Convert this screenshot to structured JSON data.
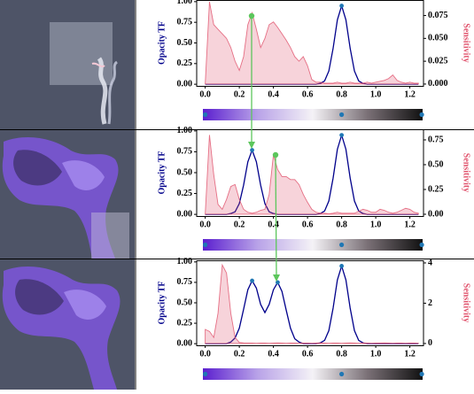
{
  "chart_data": [
    {
      "type": "line",
      "x": [
        0,
        0.025,
        0.05,
        0.075,
        0.1,
        0.125,
        0.15,
        0.175,
        0.2,
        0.225,
        0.25,
        0.275,
        0.3,
        0.325,
        0.35,
        0.375,
        0.4,
        0.425,
        0.45,
        0.475,
        0.5,
        0.525,
        0.55,
        0.575,
        0.6,
        0.625,
        0.65,
        0.675,
        0.7,
        0.725,
        0.75,
        0.775,
        0.8,
        0.825,
        0.85,
        0.875,
        0.9,
        0.925,
        0.95,
        0.975,
        1,
        1.025,
        1.05,
        1.075,
        1.1,
        1.125,
        1.15,
        1.175,
        1.2,
        1.225,
        1.25
      ],
      "series": [
        {
          "color": "#00008b",
          "values": [
            0,
            0,
            0,
            0,
            0,
            0,
            0,
            0,
            0,
            0,
            0,
            0,
            0,
            0,
            0,
            0,
            0,
            0,
            0,
            0,
            0,
            0,
            0,
            0,
            0,
            0,
            0,
            0.01,
            0.04,
            0.16,
            0.435,
            0.78,
            0.95,
            0.78,
            0.435,
            0.16,
            0.04,
            0.01,
            0,
            0,
            0,
            0,
            0,
            0,
            0,
            0,
            0,
            0,
            0,
            0,
            0
          ]
        },
        {
          "color": "#e0506a",
          "axis": "y2",
          "area": true,
          "values": [
            0,
            0.09,
            0.065,
            0.06,
            0.055,
            0.05,
            0.04,
            0.025,
            0.015,
            0.03,
            0.065,
            0.078,
            0.06,
            0.04,
            0.05,
            0.065,
            0.068,
            0.062,
            0.055,
            0.048,
            0.04,
            0.03,
            0.025,
            0.03,
            0.02,
            0.005,
            0.002,
            0.002,
            0.001,
            0.001,
            0.001,
            0.002,
            0.001,
            0.001,
            0.002,
            0.001,
            0.001,
            0.001,
            0.002,
            0.001,
            0.002,
            0.003,
            0.004,
            0.006,
            0.01,
            0.004,
            0.002,
            0.001,
            0.002,
            0.001,
            0.001
          ]
        }
      ],
      "control_points": {
        "color": "#1f77b4",
        "x": [
          0.8
        ],
        "y": [
          0.95
        ]
      },
      "colorbar": {
        "colors": [
          "#5b1fcf",
          "#b9a3e8",
          "#f4f2f6",
          "#7a7076",
          "#111111"
        ],
        "points": [
          0,
          0.8,
          1.27
        ]
      },
      "ylabel": "Opacity TF",
      "y2label": "Sensitivity",
      "xlim": [
        -0.05,
        1.28
      ],
      "ylim": [
        -0.02,
        1.02
      ],
      "y2lim": [
        -0.002,
        0.092
      ],
      "xticks": [
        {
          "value": 0,
          "label": "0.0"
        },
        0.2,
        0.4,
        0.6,
        0.8,
        {
          "value": 1,
          "label": "1.0"
        },
        1.2
      ],
      "yticks": [
        {
          "value": 0,
          "label": "0.00"
        },
        0.25,
        {
          "value": 0.5,
          "label": "0.50"
        },
        0.75,
        {
          "value": 1,
          "label": "1.00"
        }
      ],
      "y2ticks": [
        {
          "value": 0,
          "label": "0.000"
        },
        0.025,
        {
          "value": 0.05,
          "label": "0.050"
        },
        0.075
      ]
    },
    {
      "type": "line",
      "x": [
        0,
        0.025,
        0.05,
        0.075,
        0.1,
        0.125,
        0.15,
        0.175,
        0.2,
        0.225,
        0.25,
        0.275,
        0.3,
        0.325,
        0.35,
        0.375,
        0.4,
        0.425,
        0.45,
        0.475,
        0.5,
        0.525,
        0.55,
        0.575,
        0.6,
        0.625,
        0.65,
        0.675,
        0.7,
        0.725,
        0.75,
        0.775,
        0.8,
        0.825,
        0.85,
        0.875,
        0.9,
        0.925,
        0.95,
        0.975,
        1,
        1.025,
        1.05,
        1.075,
        1.1,
        1.125,
        1.15,
        1.175,
        1.2,
        1.225,
        1.25
      ],
      "series": [
        {
          "color": "#00008b",
          "values": [
            0,
            0,
            0,
            0,
            0,
            0,
            0.01,
            0.03,
            0.13,
            0.35,
            0.63,
            0.77,
            0.63,
            0.35,
            0.13,
            0.03,
            0.01,
            0,
            0,
            0,
            0,
            0,
            0,
            0,
            0,
            0,
            0,
            0.01,
            0.04,
            0.16,
            0.435,
            0.78,
            0.95,
            0.78,
            0.435,
            0.16,
            0.04,
            0.01,
            0,
            0,
            0,
            0,
            0,
            0,
            0,
            0,
            0,
            0,
            0,
            0,
            0
          ]
        },
        {
          "color": "#e0506a",
          "axis": "y2",
          "area": true,
          "values": [
            0,
            0.8,
            0.4,
            0.1,
            0.05,
            0.15,
            0.28,
            0.3,
            0.15,
            0.05,
            0.02,
            0.01,
            0.02,
            0.04,
            0.05,
            0.2,
            0.6,
            0.45,
            0.38,
            0.38,
            0.35,
            0.35,
            0.3,
            0.2,
            0.12,
            0.05,
            0.02,
            0.01,
            0.01,
            0.005,
            0.01,
            0.02,
            0.01,
            0.01,
            0.01,
            0.01,
            0.03,
            0.05,
            0.04,
            0.02,
            0.02,
            0.05,
            0.04,
            0.02,
            0.01,
            0.02,
            0.04,
            0.06,
            0.05,
            0.02,
            0.01
          ]
        }
      ],
      "control_points": {
        "color": "#1f77b4",
        "x": [
          0.275,
          0.8
        ],
        "y": [
          0.77,
          0.95
        ]
      },
      "colorbar": {
        "colors": [
          "#5b1fcf",
          "#b9a3e8",
          "#f4f2f6",
          "#7a7076",
          "#111111"
        ],
        "points": [
          0,
          0.8,
          1.27
        ]
      },
      "ylabel": "Opacity TF",
      "y2label": "Sensitivity",
      "xlim": [
        -0.05,
        1.28
      ],
      "ylim": [
        -0.02,
        1.02
      ],
      "y2lim": [
        -0.018,
        0.857
      ],
      "xticks": [
        {
          "value": 0,
          "label": "0.0"
        },
        0.2,
        0.4,
        0.6,
        0.8,
        {
          "value": 1,
          "label": "1.0"
        },
        1.2
      ],
      "yticks": [
        {
          "value": 0,
          "label": "0.00"
        },
        0.25,
        {
          "value": 0.5,
          "label": "0.50"
        },
        0.75,
        {
          "value": 1,
          "label": "1.00"
        }
      ],
      "y2ticks": [
        {
          "value": 0,
          "label": "0.00"
        },
        0.25,
        {
          "value": 0.5,
          "label": "0.50"
        },
        0.75
      ]
    },
    {
      "type": "line",
      "x": [
        0,
        0.025,
        0.05,
        0.075,
        0.1,
        0.125,
        0.15,
        0.175,
        0.2,
        0.225,
        0.25,
        0.275,
        0.3,
        0.325,
        0.35,
        0.375,
        0.4,
        0.425,
        0.45,
        0.475,
        0.5,
        0.525,
        0.55,
        0.575,
        0.6,
        0.625,
        0.65,
        0.675,
        0.7,
        0.725,
        0.75,
        0.775,
        0.8,
        0.825,
        0.85,
        0.875,
        0.9,
        0.925,
        0.95,
        0.975,
        1,
        1.025,
        1.05,
        1.075,
        1.1,
        1.125,
        1.15,
        1.175,
        1.2,
        1.225,
        1.25
      ],
      "series": [
        {
          "color": "#00008b",
          "values": [
            0,
            0,
            0,
            0,
            0,
            0,
            0.02,
            0.07,
            0.19,
            0.42,
            0.66,
            0.77,
            0.68,
            0.48,
            0.38,
            0.48,
            0.66,
            0.75,
            0.64,
            0.41,
            0.19,
            0.06,
            0.02,
            0,
            0,
            0,
            0,
            0.01,
            0.04,
            0.16,
            0.435,
            0.78,
            0.95,
            0.78,
            0.435,
            0.16,
            0.04,
            0.01,
            0,
            0,
            0,
            0,
            0,
            0,
            0,
            0,
            0,
            0,
            0,
            0,
            0
          ]
        },
        {
          "color": "#e0506a",
          "axis": "y2",
          "area": true,
          "values": [
            0.7,
            0.6,
            0.3,
            1.5,
            3.9,
            3.5,
            1.5,
            0.3,
            0.05,
            0.03,
            0.02,
            0.02,
            0.01,
            0.02,
            0.02,
            0.01,
            0.02,
            0.03,
            0.02,
            0.01,
            0.02,
            0.02,
            0.01,
            0.02,
            0.02,
            0.01,
            0.02,
            0.03,
            0.02,
            0.01,
            0.02,
            0.02,
            0.01,
            0.02,
            0.03,
            0.02,
            0.01,
            0.02,
            0.02,
            0.01,
            0.02,
            0.02,
            0.03,
            0.02,
            0.01,
            0.02,
            0.02,
            0.01,
            0.02,
            0.02,
            0.01
          ]
        }
      ],
      "control_points": {
        "color": "#1f77b4",
        "x": [
          0.275,
          0.425,
          0.8
        ],
        "y": [
          0.77,
          0.75,
          0.95
        ]
      },
      "colorbar": {
        "colors": [
          "#5b1fcf",
          "#b9a3e8",
          "#f4f2f6",
          "#7a7076",
          "#111111"
        ],
        "points": [
          0,
          0.8,
          1.27
        ]
      },
      "ylabel": "Opacity TF",
      "y2label": "Sensitivity",
      "xlim": [
        -0.05,
        1.28
      ],
      "ylim": [
        -0.02,
        1.02
      ],
      "y2lim": [
        -0.09,
        4.13
      ],
      "xticks": [
        {
          "value": 0,
          "label": "0.0"
        },
        0.2,
        0.4,
        0.6,
        0.8,
        {
          "value": 1,
          "label": "1.0"
        },
        1.2
      ],
      "yticks": [
        {
          "value": 0,
          "label": "0.00"
        },
        0.25,
        {
          "value": 0.5,
          "label": "0.50"
        },
        0.75,
        {
          "value": 1,
          "label": "1.00"
        }
      ],
      "y2ticks": [
        0,
        2,
        4
      ]
    }
  ]
}
